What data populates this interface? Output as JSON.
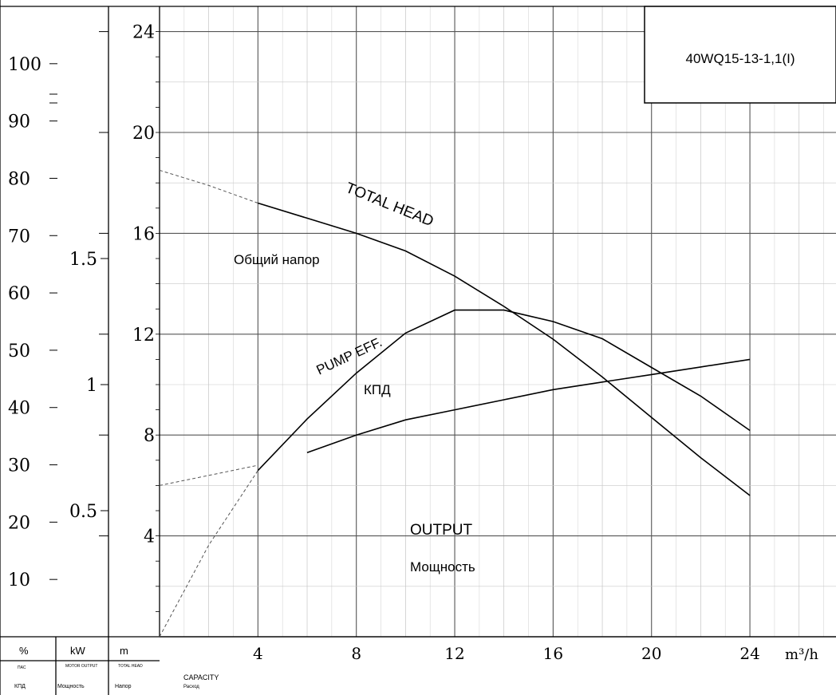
{
  "chart_data": {
    "type": "line",
    "model_label": "40WQ15-13-1,1(I)",
    "x_unit_label": "m³/h",
    "x_ticks": [
      4,
      8,
      12,
      16,
      20,
      24
    ],
    "head_ticks": [
      4,
      8,
      12,
      16,
      20,
      24
    ],
    "eff_ticks": [
      10,
      20,
      30,
      40,
      50,
      60,
      70,
      80,
      90,
      100
    ],
    "power_ticks": [
      "0.5",
      "1",
      "1.5"
    ],
    "xlim": [
      0,
      27.5
    ],
    "head_lim": [
      0,
      25
    ],
    "eff_lim": [
      0,
      110
    ],
    "power_lim": [
      0,
      2.5
    ],
    "series": [
      {
        "name": "TOTAL HEAD",
        "name_ru": "Общий напор",
        "axis": "head",
        "x": [
          0,
          2,
          4,
          6,
          8,
          10,
          12,
          14,
          16,
          18,
          20,
          22,
          24
        ],
        "values": [
          18.5,
          17.9,
          17.2,
          16.6,
          16.0,
          15.3,
          14.3,
          13.1,
          11.8,
          10.3,
          8.7,
          7.1,
          5.6
        ],
        "dashed_until": 4
      },
      {
        "name": "PUMP EFF.",
        "name_ru": "КПД",
        "axis": "eff",
        "x": [
          0,
          2,
          4,
          6,
          8,
          10,
          12,
          14,
          16,
          18,
          20,
          22,
          24
        ],
        "values": [
          0,
          16,
          29,
          38,
          46,
          53,
          57,
          57,
          55,
          52,
          47,
          42,
          36
        ],
        "dashed_until": 4
      },
      {
        "name": "OUTPUT",
        "name_ru": "Мощность",
        "axis": "power",
        "x": [
          0,
          2,
          4,
          6,
          8,
          10,
          12,
          14,
          16,
          18,
          20,
          22,
          24
        ],
        "values": [
          0.6,
          0.64,
          0.68,
          0.73,
          0.8,
          0.86,
          0.9,
          0.94,
          0.98,
          1.01,
          1.04,
          1.07,
          1.1
        ],
        "dashed_until": 5
      }
    ],
    "footer": {
      "pct_unit": "%",
      "pct_caption_1": "ПАС",
      "pct_caption_2": "КПД",
      "kw_unit": "kW",
      "kw_caption_1": "MOTOR OUTPUT",
      "kw_caption_2": "Мощность",
      "m_unit": "m",
      "m_caption_1": "TOTAL HEAD",
      "m_caption_2": "Напор",
      "capacity_en": "CAPACITY",
      "capacity_ru": "Расход"
    }
  }
}
